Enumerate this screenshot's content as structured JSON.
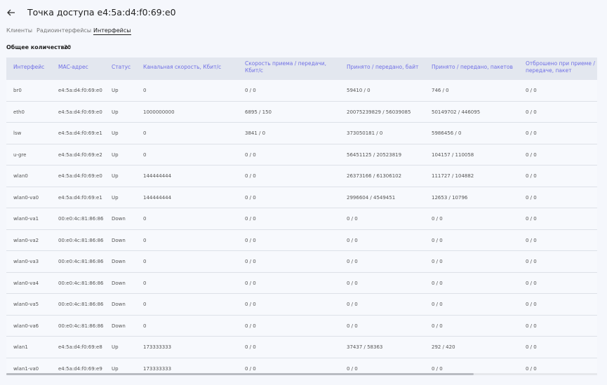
{
  "header": {
    "title": "Точка доступа e4:5a:d4:f0:69:e0"
  },
  "tabs": [
    "Клиенты",
    "Радиоинтерфейсы",
    "Интерфейсы"
  ],
  "total": {
    "label": "Общее количество:",
    "value": "20"
  },
  "table": {
    "columns": [
      "Интерфейс",
      "MAC-адрес",
      "Статус",
      "Канальная скорость, Кбит/с",
      "Скорость приема / передачи, Кбит/с",
      "Принято / передано, байт",
      "Принято / передано, пакетов",
      "Отброшено при приеме / передаче, пакет"
    ],
    "rows": [
      [
        "br0",
        "e4:5a:d4:f0:69:e0",
        "Up",
        "0",
        "0 / 0",
        "59410 / 0",
        "746 / 0",
        "0 / 0"
      ],
      [
        "eth0",
        "e4:5a:d4:f0:69:e0",
        "Up",
        "1000000000",
        "6895 / 150",
        "20075239829 / 56039085",
        "50149702 / 446095",
        "0 / 0"
      ],
      [
        "lsw",
        "e4:5a:d4:f0:69:e1",
        "Up",
        "0",
        "3841 / 0",
        "373050181 / 0",
        "5986456 / 0",
        "0 / 0"
      ],
      [
        "u-gre",
        "e4:5a:d4:f0:69:e2",
        "Up",
        "0",
        "0 / 0",
        "56451125 / 20523819",
        "104157 / 110058",
        "0 / 0"
      ],
      [
        "wlan0",
        "e4:5a:d4:f0:69:e0",
        "Up",
        "144444444",
        "0 / 0",
        "26373166 / 61306102",
        "111727 / 104882",
        "0 / 0"
      ],
      [
        "wlan0-va0",
        "e4:5a:d4:f0:69:e1",
        "Up",
        "144444444",
        "0 / 0",
        "2996604 / 4549451",
        "12653 / 10796",
        "0 / 0"
      ],
      [
        "wlan0-va1",
        "00:e0:4c:81:86:86",
        "Down",
        "0",
        "0 / 0",
        "0 / 0",
        "0 / 0",
        "0 / 0"
      ],
      [
        "wlan0-va2",
        "00:e0:4c:81:86:86",
        "Down",
        "0",
        "0 / 0",
        "0 / 0",
        "0 / 0",
        "0 / 0"
      ],
      [
        "wlan0-va3",
        "00:e0:4c:81:86:86",
        "Down",
        "0",
        "0 / 0",
        "0 / 0",
        "0 / 0",
        "0 / 0"
      ],
      [
        "wlan0-va4",
        "00:e0:4c:81:86:86",
        "Down",
        "0",
        "0 / 0",
        "0 / 0",
        "0 / 0",
        "0 / 0"
      ],
      [
        "wlan0-va5",
        "00:e0:4c:81:86:86",
        "Down",
        "0",
        "0 / 0",
        "0 / 0",
        "0 / 0",
        "0 / 0"
      ],
      [
        "wlan0-va6",
        "00:e0:4c:81:86:86",
        "Down",
        "0",
        "0 / 0",
        "0 / 0",
        "0 / 0",
        "0 / 0"
      ],
      [
        "wlan1",
        "e4:5a:d4:f0:69:e8",
        "Up",
        "173333333",
        "0 / 0",
        "37437 / 58363",
        "292 / 420",
        "0 / 0"
      ],
      [
        "wlan1-va0",
        "e4:5a:d4:f0:69:e9",
        "Up",
        "173333333",
        "0 / 0",
        "0 / 0",
        "0 / 0",
        "0 / 0"
      ]
    ]
  }
}
